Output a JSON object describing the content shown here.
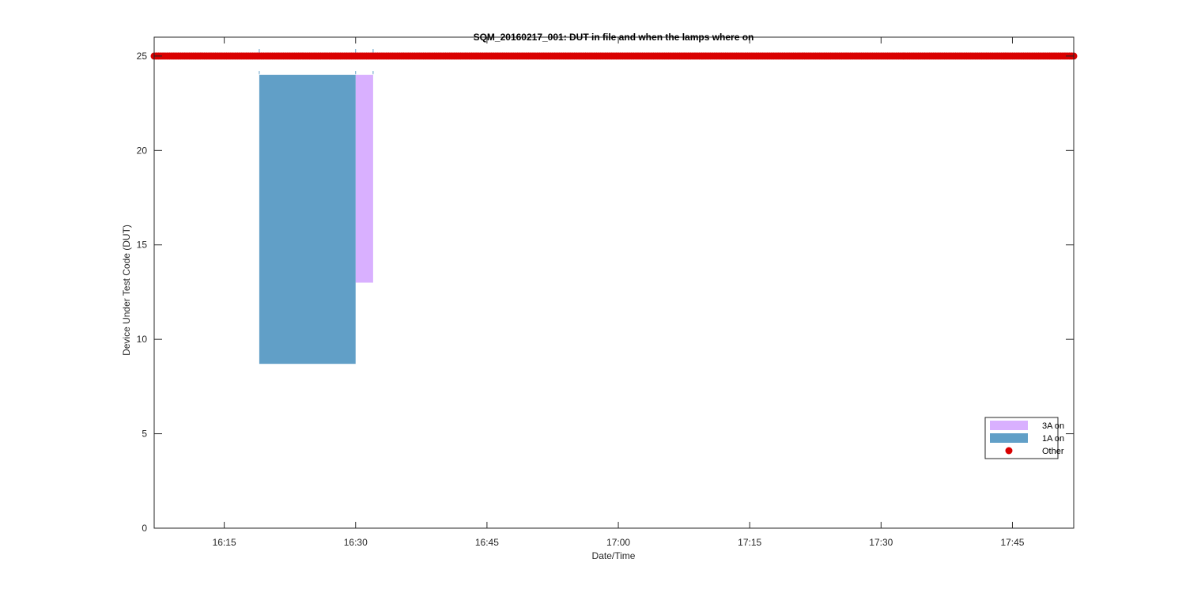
{
  "chart_data": {
    "type": "area",
    "title": "SQM_20160217_001: DUT in file and when the lamps where on",
    "xlabel": "Date/Time",
    "ylabel": "Device Under Test Code (DUT)",
    "xlim": [
      "16:07",
      "17:52"
    ],
    "ylim": [
      0,
      26
    ],
    "x_ticks": [
      "16:15",
      "16:30",
      "16:45",
      "17:00",
      "17:15",
      "17:30",
      "17:45"
    ],
    "y_ticks": [
      0,
      5,
      10,
      15,
      20,
      25
    ],
    "grid": false,
    "legend_position": "lower-right",
    "colors": {
      "lamp_3A": "#d9b0ff",
      "lamp_1A": "#619fc7",
      "other": "#d90000",
      "axis": "#262626"
    },
    "lamp_periods": [
      {
        "name": "3A on",
        "start": "16:30",
        "end": "16:32",
        "y_low": 13,
        "y_high": 24
      },
      {
        "name": "1A on",
        "start": "16:19",
        "end": "16:30",
        "y_low": 8.7,
        "y_high": 24
      }
    ],
    "lamp_markers": [
      "16:19",
      "16:30",
      "16:32"
    ],
    "other_series": {
      "name": "Other",
      "y": 25,
      "start": "16:07",
      "end": "17:52",
      "interval_min": 0.25
    },
    "legend": [
      "3A on",
      "1A on",
      "Other"
    ]
  }
}
